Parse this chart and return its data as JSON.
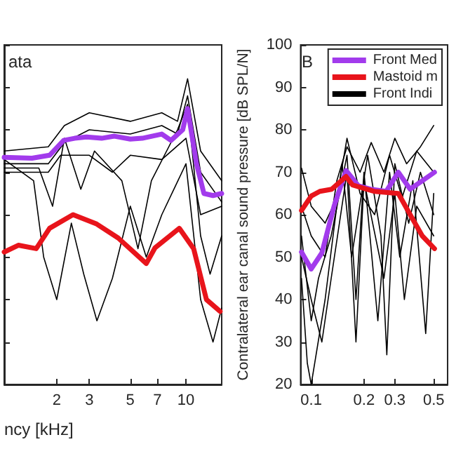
{
  "chart_data": [
    {
      "type": "line",
      "xlabel": "ncy [kHz]",
      "annotations": [
        "ata"
      ],
      "log": "x",
      "marker": "none",
      "tick_labels": "x",
      "xlim": [
        1.04,
        15.6
      ],
      "xticks": [
        2,
        3,
        5,
        7,
        10
      ],
      "ylim": [
        20,
        100
      ],
      "yticks": [
        20,
        30,
        40,
        50,
        60,
        70,
        80,
        90,
        100
      ],
      "series": [
        {
          "color": "#000000",
          "x": [
            1.04,
            1.8,
            2.2,
            3,
            5,
            7.4,
            9,
            10.2,
            12,
            15.6
          ],
          "values": [
            75,
            76,
            81,
            84,
            82,
            84,
            82,
            92,
            75,
            68
          ]
        },
        {
          "color": "#000000",
          "x": [
            1.04,
            1.8,
            2.2,
            3,
            5,
            7.4,
            9,
            10.2,
            12,
            15.6
          ],
          "values": [
            72,
            72,
            77,
            80,
            79,
            81,
            79,
            88,
            70,
            63
          ]
        },
        {
          "color": "#000000",
          "x": [
            1.04,
            1.8,
            2.1,
            3,
            4,
            5,
            7.4,
            10,
            12,
            15.6
          ],
          "values": [
            70,
            70,
            74,
            74,
            70,
            74,
            73,
            78,
            60,
            62
          ]
        },
        {
          "color": "#000000",
          "x": [
            1.04,
            1.5,
            1.7,
            2,
            2.4,
            2.8,
            3.3,
            4,
            5,
            6.1,
            7.4,
            10,
            12,
            14,
            15.6
          ],
          "values": [
            73,
            68,
            50,
            40,
            58,
            46,
            35,
            45,
            62,
            50,
            60,
            72,
            40,
            30,
            38
          ]
        },
        {
          "color": "#000000",
          "x": [
            1.04,
            1.6,
            1.9,
            2.2,
            2.7,
            3.2,
            4.5,
            5.5,
            6.5,
            9,
            10.2,
            12,
            13.5,
            15.6
          ],
          "values": [
            71,
            71,
            62,
            78,
            66,
            75,
            68,
            52,
            68,
            80,
            86,
            55,
            46,
            55
          ]
        },
        {
          "color": "#a23bec",
          "x": [
            1.04,
            1.47,
            1.83,
            2.18,
            2.5,
            2.9,
            3.5,
            4.1,
            5,
            5.8,
            7.4,
            8.3,
            9.6,
            10.2,
            11.4,
            12.5,
            14,
            15.6
          ],
          "values": [
            73.5,
            73.3,
            74,
            77.5,
            78,
            78.3,
            78,
            78.5,
            77.8,
            78,
            79,
            77.5,
            80,
            85,
            72,
            65,
            64.5,
            65
          ]
        },
        {
          "color": "#e8141b",
          "x": [
            1.04,
            1.24,
            1.55,
            1.83,
            2.45,
            3.29,
            4.3,
            6.1,
            6.8,
            9.2,
            11,
            12.9,
            15.3
          ],
          "values": [
            51.2,
            52.8,
            52,
            56.8,
            60,
            57.8,
            54.5,
            48.5,
            52.2,
            56.8,
            52,
            40,
            37.2
          ]
        }
      ]
    },
    {
      "type": "line",
      "ylabel": "Contralateral ear canal sound pressure [dB SPL/N]",
      "annotations": [
        "B"
      ],
      "log": "x",
      "marker": "none",
      "legend": "top right",
      "xlim": [
        0.087,
        0.6
      ],
      "xticks": [
        0.1,
        0.2,
        0.3,
        0.5
      ],
      "ylim": [
        20,
        100
      ],
      "yticks": [
        20,
        30,
        40,
        50,
        60,
        70,
        80,
        90,
        100
      ],
      "series": [
        {
          "name": "Front Indi",
          "color": "#000000",
          "x": [
            0.088,
            0.1,
            0.12,
            0.14,
            0.16,
            0.19,
            0.22,
            0.26,
            0.3,
            0.35,
            0.42,
            0.5
          ],
          "values": [
            62,
            55,
            50,
            68,
            76,
            70,
            77,
            70,
            78,
            72,
            76,
            81
          ]
        },
        {
          "color": "#000000",
          "x": [
            0.088,
            0.1,
            0.11,
            0.13,
            0.16,
            0.18,
            0.2,
            0.24,
            0.28,
            0.32,
            0.38,
            0.45,
            0.5
          ],
          "values": [
            55,
            35,
            45,
            55,
            74,
            40,
            70,
            35,
            70,
            50,
            68,
            32,
            65
          ]
        },
        {
          "color": "#000000",
          "x": [
            0.088,
            0.095,
            0.1,
            0.12,
            0.15,
            0.17,
            0.21,
            0.25,
            0.27,
            0.3,
            0.36,
            0.42,
            0.5
          ],
          "values": [
            45,
            25,
            20,
            40,
            72,
            50,
            74,
            55,
            27,
            72,
            58,
            70,
            60
          ]
        },
        {
          "color": "#000000",
          "x": [
            0.088,
            0.1,
            0.12,
            0.14,
            0.16,
            0.19,
            0.23,
            0.28,
            0.33,
            0.4,
            0.5
          ],
          "values": [
            71,
            62,
            58,
            64,
            78,
            65,
            60,
            74,
            64,
            75,
            70
          ]
        },
        {
          "color": "#000000",
          "x": [
            0.088,
            0.1,
            0.115,
            0.13,
            0.16,
            0.18,
            0.2,
            0.26,
            0.3,
            0.34,
            0.4,
            0.5
          ],
          "values": [
            50,
            40,
            30,
            45,
            70,
            30,
            68,
            45,
            65,
            40,
            62,
            55
          ]
        },
        {
          "name": "Front Med",
          "color": "#a23bec",
          "x": [
            0.088,
            0.1,
            0.115,
            0.135,
            0.158,
            0.186,
            0.218,
            0.268,
            0.314,
            0.367,
            0.505
          ],
          "values": [
            51.2,
            47.2,
            51,
            62,
            70.4,
            66.8,
            66,
            65.5,
            70,
            66,
            70
          ]
        },
        {
          "name": "Mastoid m",
          "color": "#e8141b",
          "x": [
            0.088,
            0.1,
            0.112,
            0.131,
            0.158,
            0.172,
            0.228,
            0.314,
            0.367,
            0.43,
            0.505
          ],
          "values": [
            61,
            64.4,
            65.5,
            66,
            69,
            67,
            65.5,
            65,
            60,
            55,
            52
          ]
        }
      ]
    }
  ]
}
